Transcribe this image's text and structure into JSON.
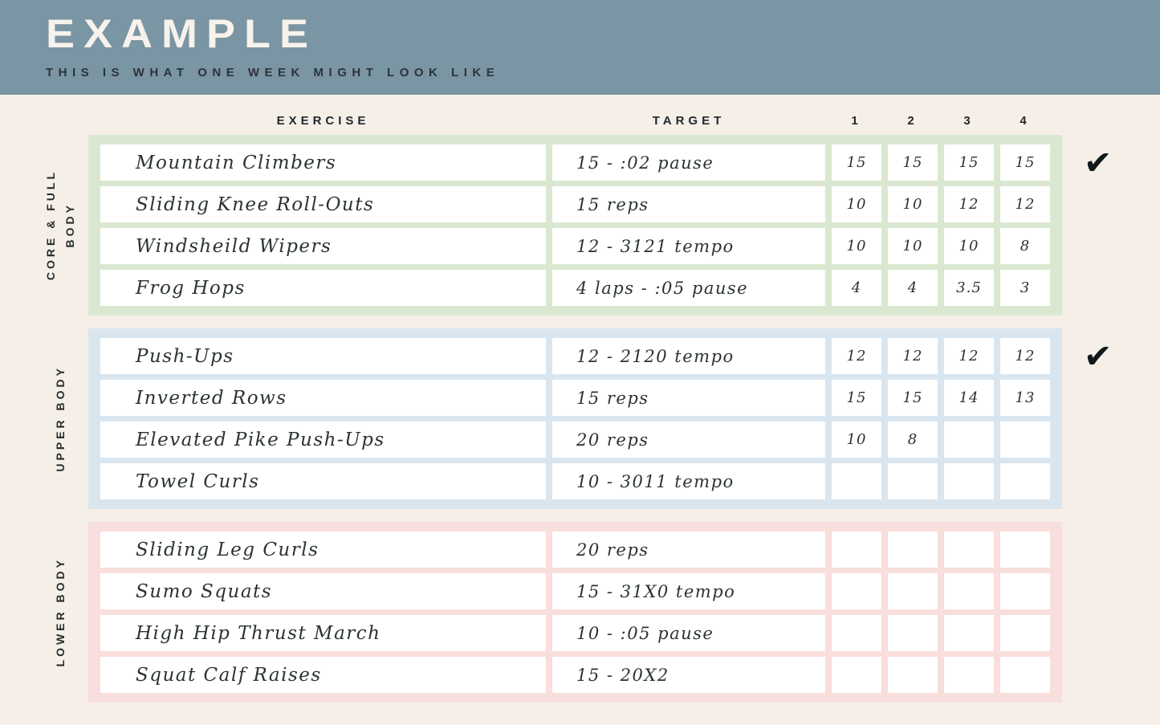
{
  "banner": {
    "title": "EXAMPLE",
    "subtitle": "THIS IS WHAT ONE WEEK MIGHT LOOK LIKE",
    "background_color": "#7a95a3",
    "title_color": "#f7f2eb",
    "subtitle_color": "#2c343a"
  },
  "page": {
    "background_color": "#f6efe8"
  },
  "table": {
    "headers": {
      "exercise": "EXERCISE",
      "target": "TARGET",
      "sets": [
        "1",
        "2",
        "3",
        "4"
      ]
    },
    "checkmark_glyph": "✔",
    "sections": [
      {
        "id": "core-full-body",
        "label_lines": [
          "CORE & FULL",
          "BODY"
        ],
        "color": "#dbe8d1",
        "checked": true,
        "rows": [
          {
            "exercise": "Mountain Climbers",
            "target": "15 - :02 pause",
            "values": [
              "15",
              "15",
              "15",
              "15"
            ]
          },
          {
            "exercise": "Sliding Knee Roll-Outs",
            "target": "15 reps",
            "values": [
              "10",
              "10",
              "12",
              "12"
            ]
          },
          {
            "exercise": "Windsheild Wipers",
            "target": "12 - 3121 tempo",
            "values": [
              "10",
              "10",
              "10",
              "8"
            ]
          },
          {
            "exercise": "Frog Hops",
            "target": "4 laps - :05 pause",
            "values": [
              "4",
              "4",
              "3.5",
              "3"
            ]
          }
        ]
      },
      {
        "id": "upper-body",
        "label_lines": [
          "UPPER BODY"
        ],
        "color": "#dae6ef",
        "checked": true,
        "rows": [
          {
            "exercise": "Push-Ups",
            "target": "12 - 2120 tempo",
            "values": [
              "12",
              "12",
              "12",
              "12"
            ]
          },
          {
            "exercise": "Inverted Rows",
            "target": "15 reps",
            "values": [
              "15",
              "15",
              "14",
              "13"
            ]
          },
          {
            "exercise": "Elevated Pike Push-Ups",
            "target": "20 reps",
            "values": [
              "10",
              "8",
              "",
              ""
            ]
          },
          {
            "exercise": "Towel Curls",
            "target": "10 - 3011 tempo",
            "values": [
              "",
              "",
              "",
              ""
            ]
          }
        ]
      },
      {
        "id": "lower-body",
        "label_lines": [
          "LOWER BODY"
        ],
        "color": "#f8dedc",
        "checked": false,
        "rows": [
          {
            "exercise": "Sliding Leg Curls",
            "target": "20 reps",
            "values": [
              "",
              "",
              "",
              ""
            ]
          },
          {
            "exercise": "Sumo Squats",
            "target": "15 - 31X0 tempo",
            "values": [
              "",
              "",
              "",
              ""
            ]
          },
          {
            "exercise": "High Hip Thrust March",
            "target": "10 - :05 pause",
            "values": [
              "",
              "",
              "",
              ""
            ]
          },
          {
            "exercise": "Squat Calf Raises",
            "target": "15 - 20X2",
            "values": [
              "",
              "",
              "",
              ""
            ]
          }
        ]
      }
    ]
  }
}
